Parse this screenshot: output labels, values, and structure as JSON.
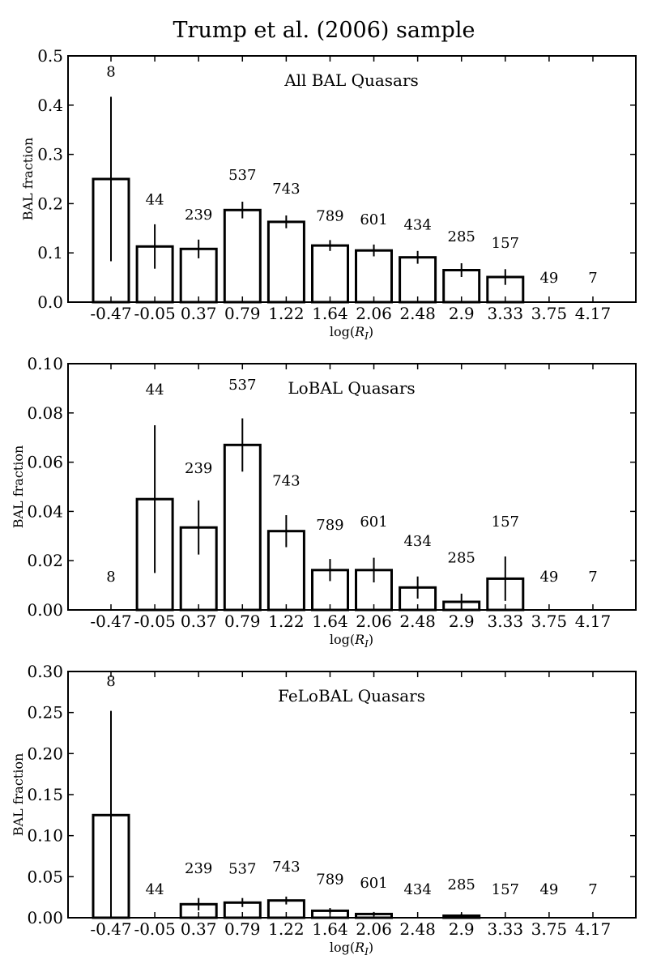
{
  "figure": {
    "title": "Trump et al. (2006) sample",
    "colors": {
      "bar_edge": "#000000",
      "bar_fill": "#ffffff",
      "background": "#ffffff"
    }
  },
  "chart_data": [
    {
      "type": "bar",
      "title": "All BAL Quasars",
      "xlabel": "log(R_I)",
      "ylabel": "BAL fraction",
      "ylim": [
        0,
        0.5
      ],
      "yticks": [
        "0.0",
        "0.1",
        "0.2",
        "0.3",
        "0.4",
        "0.5"
      ],
      "categories": [
        "-0.47",
        "-0.05",
        "0.37",
        "0.79",
        "1.22",
        "1.64",
        "2.06",
        "2.48",
        "2.9",
        "3.33",
        "3.75",
        "4.17"
      ],
      "values": [
        0.25,
        0.113,
        0.108,
        0.187,
        0.163,
        0.115,
        0.105,
        0.091,
        0.065,
        0.051,
        0.0,
        0.0
      ],
      "errors": [
        0.167,
        0.045,
        0.019,
        0.017,
        0.013,
        0.011,
        0.012,
        0.013,
        0.014,
        0.016,
        0,
        0
      ],
      "counts": [
        "8",
        "44",
        "239",
        "537",
        "743",
        "789",
        "601",
        "434",
        "285",
        "157",
        "49",
        "7"
      ],
      "count_y": [
        0.468,
        0.208,
        0.178,
        0.258,
        0.23,
        0.175,
        0.168,
        0.157,
        0.133,
        0.12,
        0.049,
        0.049
      ]
    },
    {
      "type": "bar",
      "title": "LoBAL Quasars",
      "xlabel": "log(R_I)",
      "ylabel": "BAL fraction",
      "ylim": [
        0,
        0.1
      ],
      "yticks": [
        "0.00",
        "0.02",
        "0.04",
        "0.06",
        "0.08",
        "0.10"
      ],
      "categories": [
        "-0.47",
        "-0.05",
        "0.37",
        "0.79",
        "1.22",
        "1.64",
        "2.06",
        "2.48",
        "2.9",
        "3.33",
        "3.75",
        "4.17"
      ],
      "values": [
        0.0,
        0.045,
        0.0335,
        0.067,
        0.032,
        0.0162,
        0.0162,
        0.0091,
        0.0033,
        0.0127,
        0.0,
        0.0
      ],
      "errors": [
        0,
        0.03,
        0.011,
        0.0108,
        0.0065,
        0.0045,
        0.005,
        0.0045,
        0.0033,
        0.009,
        0,
        0
      ],
      "counts": [
        "8",
        "44",
        "239",
        "537",
        "743",
        "789",
        "601",
        "434",
        "285",
        "157",
        "49",
        "7"
      ],
      "count_y": [
        0.0135,
        0.0895,
        0.0575,
        0.0915,
        0.0525,
        0.0345,
        0.0358,
        0.028,
        0.0212,
        0.0358,
        0.0135,
        0.0135
      ]
    },
    {
      "type": "bar",
      "title": "FeLoBAL Quasars",
      "xlabel": "log(R_I)",
      "ylabel": "BAL fraction",
      "ylim": [
        0,
        0.3
      ],
      "yticks": [
        "0.00",
        "0.05",
        "0.10",
        "0.15",
        "0.20",
        "0.25",
        "0.30"
      ],
      "categories": [
        "-0.47",
        "-0.05",
        "0.37",
        "0.79",
        "1.22",
        "1.64",
        "2.06",
        "2.48",
        "2.9",
        "3.33",
        "3.75",
        "4.17"
      ],
      "values": [
        0.125,
        0.0,
        0.0165,
        0.0185,
        0.021,
        0.0085,
        0.0045,
        0.0,
        0.0025,
        0.0,
        0.0,
        0.0
      ],
      "errors": [
        0.127,
        0,
        0.0075,
        0.0055,
        0.0048,
        0.0032,
        0.0025,
        0,
        0.0025,
        0,
        0,
        0
      ],
      "counts": [
        "8",
        "44",
        "239",
        "537",
        "743",
        "789",
        "601",
        "434",
        "285",
        "157",
        "49",
        "7"
      ],
      "count_y": [
        0.288,
        0.0345,
        0.06,
        0.0595,
        0.062,
        0.047,
        0.0425,
        0.0345,
        0.0405,
        0.0345,
        0.0345,
        0.0345
      ]
    }
  ]
}
